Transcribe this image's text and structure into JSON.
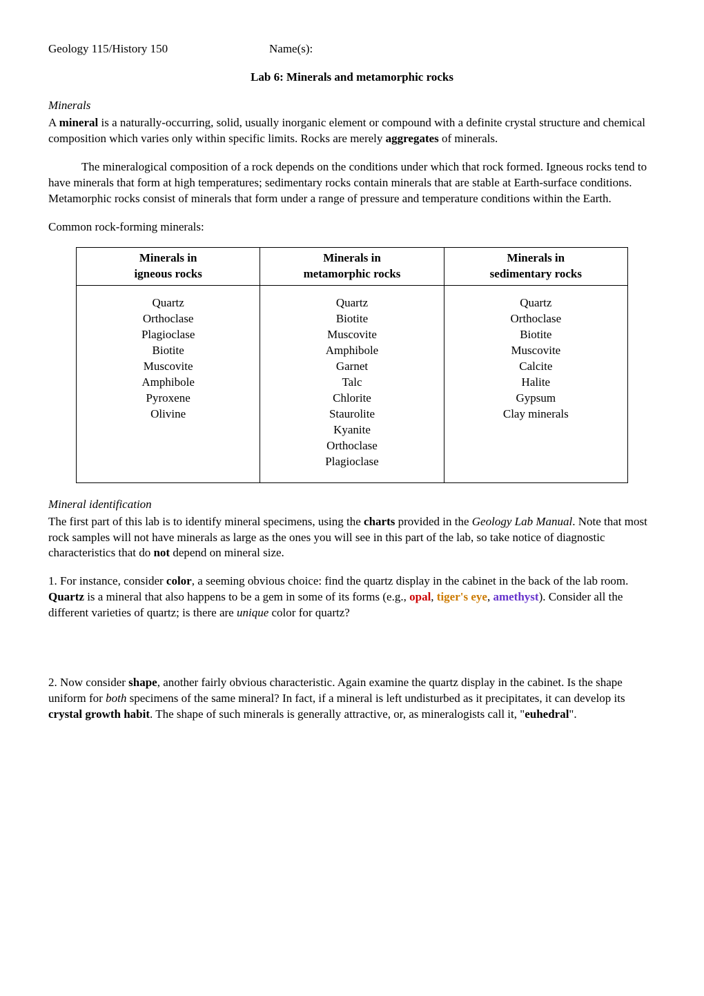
{
  "header": {
    "course": "Geology 115/History 150",
    "names_label": "Name(s):"
  },
  "title": "Lab 6: Minerals and metamorphic rocks",
  "minerals_heading": "Minerals",
  "intro_p1_a": "A ",
  "intro_p1_mineral": "mineral",
  "intro_p1_b": " is a naturally-occurring, solid, usually inorganic element or compound with a definite crystal structure and chemical composition which varies only within specific limits. Rocks are merely ",
  "intro_p1_aggregates": "aggregates",
  "intro_p1_c": " of minerals.",
  "intro_p2": "The mineralogical composition of a rock depends on the conditions under which that rock formed. Igneous rocks tend to have minerals that form at high temperatures; sedimentary rocks contain minerals that are stable at Earth-surface conditions. Metamorphic rocks consist of minerals that form under a range of pressure and temperature conditions within the Earth.",
  "common_label": "Common rock-forming minerals:",
  "table": {
    "headers": {
      "igneous_l1": "Minerals in",
      "igneous_l2": "igneous rocks",
      "meta_l1": "Minerals in",
      "meta_l2": "metamorphic rocks",
      "sed_l1": "Minerals in",
      "sed_l2": "sedimentary rocks"
    },
    "igneous": [
      "Quartz",
      "Orthoclase",
      "Plagioclase",
      "Biotite",
      "Muscovite",
      "Amphibole",
      "Pyroxene",
      "Olivine"
    ],
    "metamorphic": [
      "Quartz",
      "Biotite",
      "Muscovite",
      "Amphibole",
      "Garnet",
      "Talc",
      "Chlorite",
      "Staurolite",
      "Kyanite",
      "Orthoclase",
      "Plagioclase"
    ],
    "sedimentary": [
      "Quartz",
      "Orthoclase",
      "Biotite",
      "Muscovite",
      "Calcite",
      "Halite",
      "Gypsum",
      "Clay minerals"
    ]
  },
  "mineral_id_heading": "Mineral identification",
  "id_p1_a": "The first part of this lab is to identify mineral specimens, using the ",
  "id_p1_charts": "charts",
  "id_p1_b": " provided in the ",
  "id_p1_manual": "Geology Lab Manual",
  "id_p1_c": ". Note that most rock samples will not have minerals as large as the ones you will see in this part of the lab, so take notice of diagnostic characteristics that do ",
  "id_p1_not": "not",
  "id_p1_d": " depend on mineral size.",
  "q1_a": "1. For instance, consider ",
  "q1_color": "color",
  "q1_b": ", a seeming obvious choice: find the quartz display in the cabinet in the back of the lab room. ",
  "q1_quartz": "Quartz",
  "q1_c": " is a mineral that also happens to be a gem in some of its forms (e.g., ",
  "q1_opal": "opal",
  "q1_comma1": ", ",
  "q1_tiger": "tiger's eye",
  "q1_comma2": ", ",
  "q1_amethyst": "amethyst",
  "q1_d": "). Consider all the different varieties of quartz; is there are ",
  "q1_unique": "unique",
  "q1_e": " color for quartz?",
  "q2_a": "2. Now consider ",
  "q2_shape": "shape",
  "q2_b": ", another fairly obvious characteristic. Again examine the quartz display in the cabinet. Is the shape uniform for ",
  "q2_both": "both",
  "q2_c": " specimens of the same mineral? In fact, if a mineral is left undisturbed as it precipitates, it can develop its ",
  "q2_crystal": "crystal growth habit",
  "q2_d": ". The shape of such minerals is generally attractive, or, as mineralogists call it, \"",
  "q2_euhedral": "euhedral",
  "q2_e": "\"."
}
